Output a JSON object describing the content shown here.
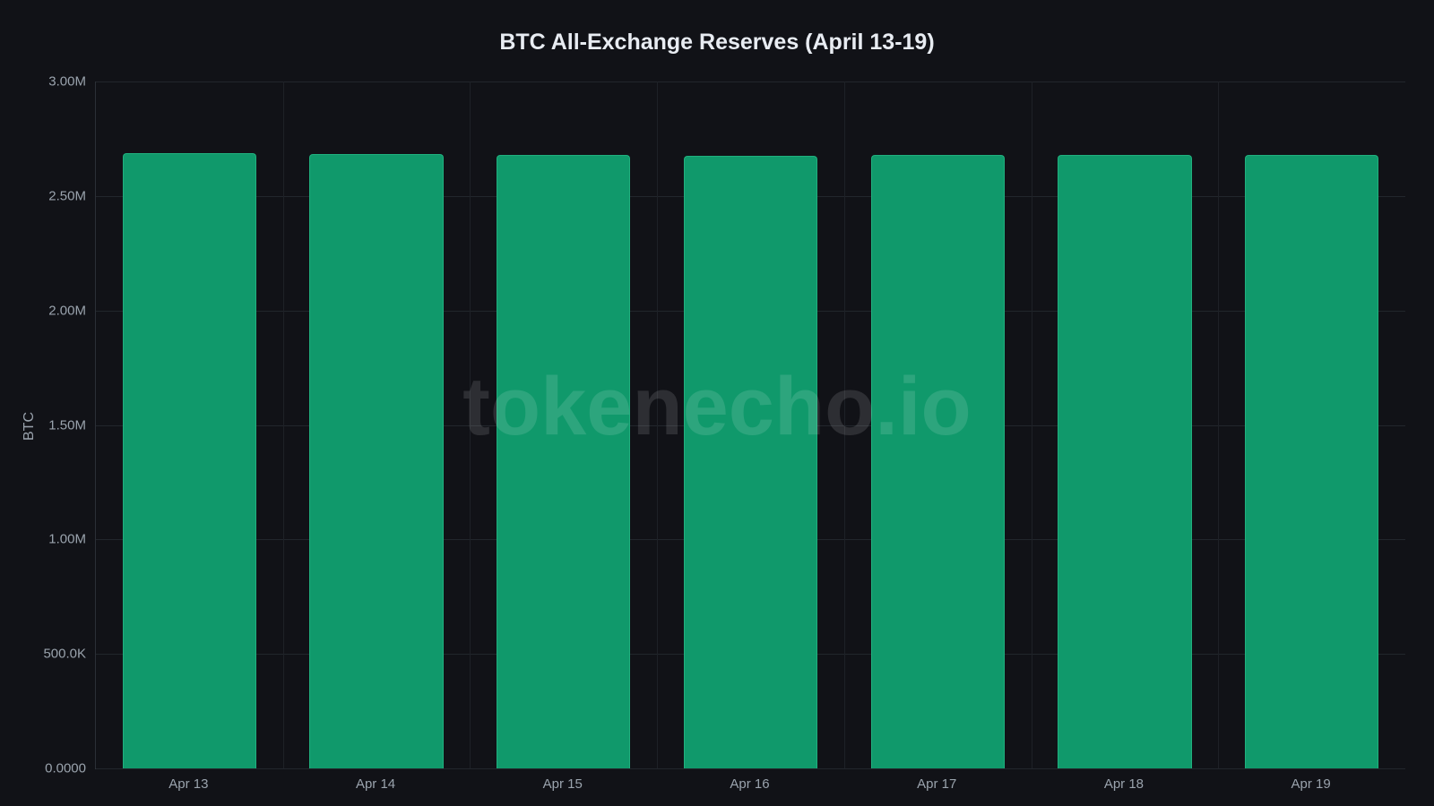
{
  "chart_data": {
    "type": "bar",
    "title": "BTC All-Exchange Reserves (April 13-19)",
    "xlabel": "",
    "ylabel": "BTC",
    "categories": [
      "Apr 13",
      "Apr 14",
      "Apr 15",
      "Apr 16",
      "Apr 17",
      "Apr 18",
      "Apr 19"
    ],
    "values": [
      2687000,
      2683000,
      2679000,
      2675000,
      2679000,
      2678000,
      2681000
    ],
    "ylim": [
      0,
      3000000
    ],
    "yticks": [
      "0.0000",
      "500.0K",
      "1.00M",
      "1.50M",
      "2.00M",
      "2.50M",
      "3.00M"
    ],
    "grid": true,
    "legend": null,
    "bar_color": "#10996b",
    "background": "#111217"
  },
  "watermark": "tokenecho.io"
}
